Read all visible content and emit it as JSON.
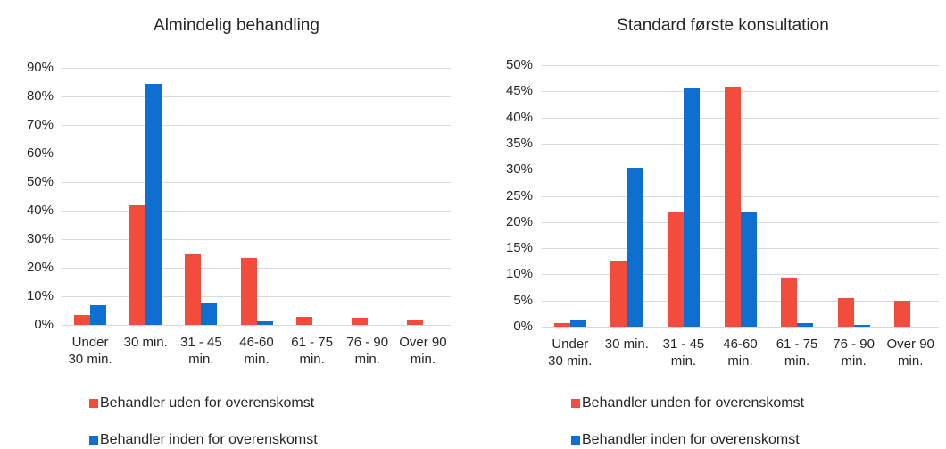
{
  "chart_data": [
    {
      "type": "bar",
      "title": "Almindelig behandling",
      "categories": [
        "Under 30 min.",
        "30 min.",
        "31 - 45 min.",
        "46-60 min.",
        "61 - 75 min.",
        "76 - 90 min.",
        "Over 90 min."
      ],
      "series": [
        {
          "name": "Behandler uden for overenskomst",
          "color": "#f24c3d",
          "values": [
            3.5,
            41.8,
            25,
            23.4,
            2.8,
            2.5,
            1.8
          ]
        },
        {
          "name": "Behandler inden for overenskomst",
          "color": "#0e6fd0",
          "values": [
            6.8,
            84.5,
            7.5,
            1.2,
            0,
            0,
            0
          ]
        }
      ],
      "ylim": [
        0,
        90
      ],
      "yticks": [
        {
          "value": 0,
          "label": "0%"
        },
        {
          "value": 10,
          "label": "10%"
        },
        {
          "value": 20,
          "label": "20%"
        },
        {
          "value": 30,
          "label": "30%"
        },
        {
          "value": 40,
          "label": "40%"
        },
        {
          "value": 50,
          "label": "50%"
        },
        {
          "value": 60,
          "label": "60%"
        },
        {
          "value": 70,
          "label": "70%"
        },
        {
          "value": 80,
          "label": "80%"
        },
        {
          "value": 90,
          "label": "90%"
        }
      ],
      "grid": true,
      "legend": "bottom"
    },
    {
      "type": "bar",
      "title": "Standard første konsultation",
      "categories": [
        "Under 30 min.",
        "30 min.",
        "31 - 45 min.",
        "46-60 min.",
        "61 - 75 min.",
        "76 - 90 min.",
        "Over 90 min."
      ],
      "series": [
        {
          "name": "Behandler unden for overenskomst",
          "color": "#f24c3d",
          "values": [
            0.6,
            12.6,
            21.8,
            45.7,
            9.4,
            5.5,
            4.9
          ]
        },
        {
          "name": "Behandler inden for overenskomst",
          "color": "#0e6fd0",
          "values": [
            1.4,
            30.4,
            45.5,
            21.8,
            0.7,
            0.3,
            0
          ]
        }
      ],
      "ylim": [
        0,
        50
      ],
      "yticks": [
        {
          "value": 0,
          "label": "0%"
        },
        {
          "value": 5,
          "label": "5%"
        },
        {
          "value": 10,
          "label": "10%"
        },
        {
          "value": 15,
          "label": "15%"
        },
        {
          "value": 20,
          "label": "20%"
        },
        {
          "value": 25,
          "label": "25%"
        },
        {
          "value": 30,
          "label": "30%"
        },
        {
          "value": 35,
          "label": "35%"
        },
        {
          "value": 40,
          "label": "40%"
        },
        {
          "value": 45,
          "label": "45%"
        },
        {
          "value": 50,
          "label": "50%"
        }
      ],
      "grid": true,
      "legend": "bottom"
    }
  ]
}
